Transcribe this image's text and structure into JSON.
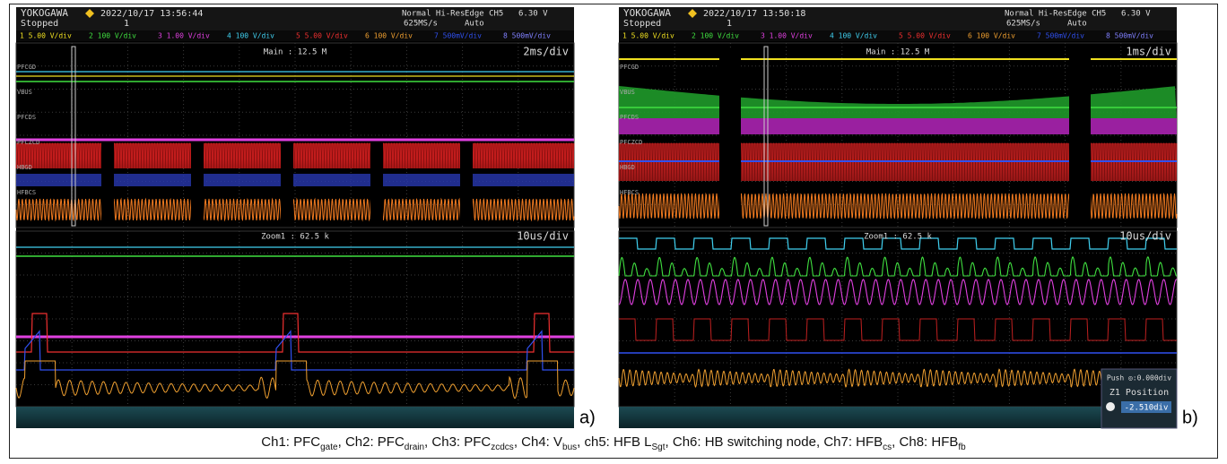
{
  "panels": [
    {
      "label": "a)",
      "header": {
        "brand": "YOKOGAWA",
        "datetime": "2022/10/17 13:56:44",
        "state": "Stopped",
        "count": "1",
        "mode": "Normal Hi-Res",
        "rate": "625MS/s",
        "trigger": "Edge CH5",
        "level": "6.30 V",
        "trigger_mode": "Auto"
      },
      "channels": [
        {
          "label": "1  5.00 V/div",
          "color": "#f0e020"
        },
        {
          "label": "2  100 V/div",
          "color": "#40e040"
        },
        {
          "label": "3  1.00 V/div",
          "color": "#e040e0"
        },
        {
          "label": "4  100 V/div",
          "color": "#40d0f0"
        },
        {
          "label": "5  5.00 V/div",
          "color": "#f03030"
        },
        {
          "label": "6  100 V/div",
          "color": "#f0a030"
        },
        {
          "label": "7  500mV/div",
          "color": "#3050f0"
        },
        {
          "label": "8  500mV/div",
          "color": "#8080ff"
        }
      ],
      "main": {
        "info": "Main : 12.5 M",
        "timebase": "2ms/div"
      },
      "zoom": {
        "info": "Zoom1 : 62.5 k",
        "timebase": "10us/div"
      },
      "side_labels": [
        "PFCGD",
        "VBUS",
        "PFCDS",
        "PFCZCD",
        "HBGD",
        "HFBCS"
      ]
    },
    {
      "label": "b)",
      "header": {
        "brand": "YOKOGAWA",
        "datetime": "2022/10/17 13:50:18",
        "state": "Stopped",
        "count": "1",
        "mode": "Normal Hi-Res",
        "rate": "625MS/s",
        "trigger": "Edge CH5",
        "level": "6.30 V",
        "trigger_mode": "Auto"
      },
      "channels": [
        {
          "label": "1  5.00 V/div",
          "color": "#f0e020"
        },
        {
          "label": "2  100 V/div",
          "color": "#40e040"
        },
        {
          "label": "3  1.00 V/div",
          "color": "#e040e0"
        },
        {
          "label": "4  100 V/div",
          "color": "#40d0f0"
        },
        {
          "label": "5  5.00 V/div",
          "color": "#f03030"
        },
        {
          "label": "6  100 V/div",
          "color": "#f0a030"
        },
        {
          "label": "7  500mV/div",
          "color": "#3050f0"
        },
        {
          "label": "8  500mV/div",
          "color": "#8080ff"
        }
      ],
      "main": {
        "info": "Main : 12.5 M",
        "timebase": "1ms/div"
      },
      "zoom": {
        "info": "Zoom1 : 62.5 k",
        "timebase": "10us/div"
      },
      "side_labels": [
        "PFCGD",
        "VBUS",
        "PFCDS",
        "PFCZCD",
        "HBGD",
        "HFBCS"
      ],
      "overlay": {
        "push": "Push ◎:0.000div",
        "title": "Z1 Position",
        "value": "-2.510div"
      }
    }
  ],
  "caption": {
    "separator": ", ",
    "items": [
      {
        "text": "Ch1: PFC",
        "sub": "gate"
      },
      {
        "text": "Ch2: PFC",
        "sub": "drain"
      },
      {
        "text": "Ch3: PFC",
        "sub": "zcdcs"
      },
      {
        "text": "Ch4: V",
        "sub": "bus"
      },
      {
        "text": "ch5: HFB L",
        "sub": "Sgt"
      },
      {
        "text": "Ch6: HB switching node"
      },
      {
        "text": "Ch7: HFB",
        "sub": "cs"
      },
      {
        "text": "Ch8: HFB",
        "sub": "fb"
      }
    ]
  }
}
